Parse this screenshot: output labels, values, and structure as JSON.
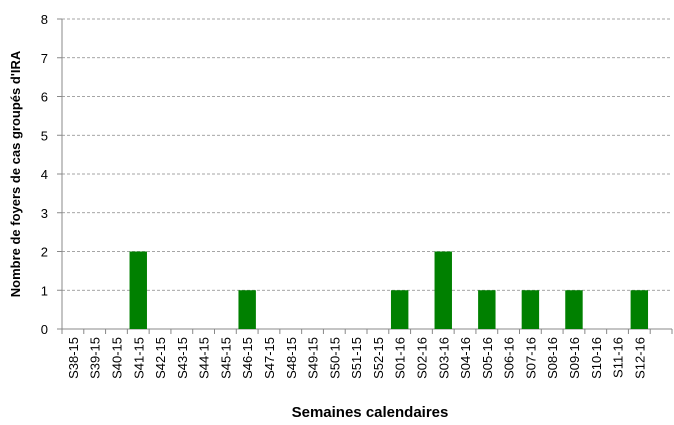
{
  "chart_data": {
    "type": "bar",
    "x_label": "Semaines calendaires",
    "y_label": "Nombre de foyers de cas groupés d'IRA",
    "categories": [
      "S38-15",
      "S39-15",
      "S40-15",
      "S41-15",
      "S42-15",
      "S43-15",
      "S44-15",
      "S45-15",
      "S46-15",
      "S47-15",
      "S48-15",
      "S49-15",
      "S50-15",
      "S51-15",
      "S52-15",
      "S01-16",
      "S02-16",
      "S03-16",
      "S04-16",
      "S05-16",
      "S06-16",
      "S07-16",
      "S08-16",
      "S09-16",
      "S10-16",
      "S11-16",
      "S12-16",
      null
    ],
    "values": [
      0,
      0,
      0,
      2,
      0,
      0,
      0,
      0,
      1,
      0,
      0,
      0,
      0,
      0,
      0,
      1,
      0,
      2,
      0,
      1,
      0,
      1,
      0,
      1,
      0,
      0,
      1,
      null
    ],
    "color": "#008000",
    "ylim": [
      0,
      8
    ],
    "yticks": [
      0,
      1,
      2,
      3,
      4,
      5,
      6,
      7,
      8
    ],
    "grid": true
  }
}
